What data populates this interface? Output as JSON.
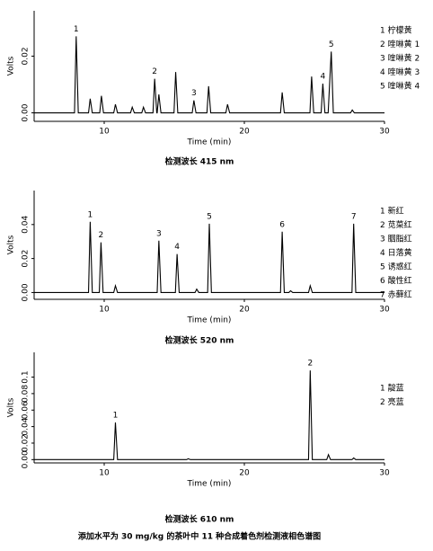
{
  "figure_caption": "添加水平为 30 mg/kg 的茶叶中 11 种合成着色剂检测液相色谱图",
  "chart_data": [
    {
      "type": "line",
      "caption": "检测波长 415 nm",
      "xlabel": "Time (min)",
      "ylabel": "Volts",
      "color": "#000000",
      "xlim": [
        5,
        30
      ],
      "xticks": [
        10,
        20,
        30
      ],
      "ylim": [
        -0.003,
        0.036
      ],
      "yticks": [
        {
          "value": 0,
          "label": "0.00"
        },
        {
          "value": 0.02,
          "label": "0.02"
        }
      ],
      "x": [
        5,
        7.88,
        8.0,
        8.15,
        8.88,
        9.0,
        9.15,
        9.68,
        9.8,
        9.95,
        10.68,
        10.8,
        10.95,
        11.88,
        12.0,
        12.15,
        12.68,
        12.8,
        12.95,
        13.48,
        13.6,
        13.75,
        13.78,
        13.9,
        14.05,
        14.98,
        15.1,
        15.25,
        16.28,
        16.4,
        16.55,
        17.33,
        17.45,
        17.6,
        18.68,
        18.8,
        18.95,
        22.58,
        22.7,
        22.85,
        24.68,
        24.8,
        24.95,
        25.48,
        25.6,
        25.75,
        25.98,
        26.2,
        26.35,
        27.58,
        27.7,
        27.85,
        30
      ],
      "values": [
        0,
        0,
        0.027,
        0,
        0,
        0.005,
        0,
        0,
        0.006,
        0,
        0,
        0.003,
        0,
        0,
        0.002,
        0,
        0,
        0.002,
        0,
        0,
        0.012,
        0,
        0,
        0.0065,
        0,
        0,
        0.0144,
        0,
        0,
        0.0044,
        0,
        0,
        0.0094,
        0,
        0,
        0.003,
        0,
        0,
        0.0072,
        0,
        0,
        0.0128,
        0,
        0,
        0.0103,
        0,
        0,
        0.0216,
        0,
        0,
        0.001,
        0,
        0
      ],
      "peak_labels": [
        {
          "text": "1",
          "x": 8.0,
          "y": 0.027
        },
        {
          "text": "2",
          "x": 13.6,
          "y": 0.012
        },
        {
          "text": "3",
          "x": 16.4,
          "y": 0.0044
        },
        {
          "text": "4",
          "x": 25.6,
          "y": 0.0103
        },
        {
          "text": "5",
          "x": 26.2,
          "y": 0.0216
        }
      ],
      "legend": [
        "1  柠檬黄",
        "2  喹啉黄 1",
        "3  喹啉黄 2",
        "4  喹啉黄 3",
        "5  喹啉黄 4"
      ]
    },
    {
      "type": "line",
      "caption": "检测波长 520 nm",
      "xlabel": "Time (min)",
      "ylabel": "Volts",
      "color": "#000000",
      "xlim": [
        5,
        30
      ],
      "xticks": [
        10,
        20,
        30
      ],
      "ylim": [
        -0.004,
        0.06
      ],
      "yticks": [
        {
          "value": 0,
          "label": "0.00"
        },
        {
          "value": 0.02,
          "label": "0.02"
        },
        {
          "value": 0.04,
          "label": "0.04"
        }
      ],
      "x": [
        5,
        8.88,
        9.0,
        9.15,
        9.65,
        9.77,
        9.92,
        10.68,
        10.8,
        10.95,
        13.78,
        13.9,
        14.05,
        15.08,
        15.2,
        15.35,
        16.48,
        16.6,
        16.75,
        17.38,
        17.5,
        17.65,
        22.58,
        22.7,
        22.85,
        23.18,
        23.3,
        23.45,
        24.58,
        24.7,
        24.85,
        27.68,
        27.8,
        27.95,
        30
      ],
      "values": [
        0,
        0,
        0.0416,
        0,
        0,
        0.0295,
        0,
        0,
        0.004,
        0,
        0,
        0.0305,
        0,
        0,
        0.0226,
        0,
        0,
        0.002,
        0,
        0,
        0.0405,
        0,
        0,
        0.0358,
        0,
        0,
        0.001,
        0,
        0,
        0.004,
        0,
        0,
        0.0405,
        0,
        0
      ],
      "peak_labels": [
        {
          "text": "1",
          "x": 9.0,
          "y": 0.0416
        },
        {
          "text": "2",
          "x": 9.77,
          "y": 0.0295
        },
        {
          "text": "3",
          "x": 13.9,
          "y": 0.0305
        },
        {
          "text": "4",
          "x": 15.2,
          "y": 0.0226
        },
        {
          "text": "5",
          "x": 17.5,
          "y": 0.0405
        },
        {
          "text": "6",
          "x": 22.7,
          "y": 0.0358
        },
        {
          "text": "7",
          "x": 27.8,
          "y": 0.0405
        }
      ],
      "legend": [
        "1  新红",
        "2  苋菜红",
        "3  胭脂红",
        "4  日落黄",
        "5  诱惑红",
        "6  酸性红",
        "7  赤藓红"
      ]
    },
    {
      "type": "line",
      "caption": "检测波长 610 nm",
      "xlabel": "Time (min)",
      "ylabel": "Volts",
      "color": "#000000",
      "xlim": [
        5,
        30
      ],
      "xticks": [
        10,
        20,
        30
      ],
      "ylim": [
        -0.004,
        0.13
      ],
      "yticks": [
        {
          "value": 0,
          "label": "0.00"
        },
        {
          "value": 0.02,
          "label": "0.02"
        },
        {
          "value": 0.04,
          "label": "0.04"
        },
        {
          "value": 0.06,
          "label": "0.06"
        },
        {
          "value": 0.08,
          "label": "0.08"
        },
        {
          "value": 0.1,
          "label": "0.1"
        }
      ],
      "x": [
        5,
        10.68,
        10.8,
        10.95,
        15.88,
        16.0,
        16.15,
        24.58,
        24.7,
        24.85,
        25.88,
        26.0,
        26.15,
        27.68,
        27.8,
        27.95,
        30
      ],
      "values": [
        0,
        0,
        0.045,
        0,
        0,
        0.001,
        0,
        0,
        0.108,
        0,
        0,
        0.006,
        0,
        0,
        0.002,
        0,
        0
      ],
      "peak_labels": [
        {
          "text": "1",
          "x": 10.8,
          "y": 0.045
        },
        {
          "text": "2",
          "x": 24.7,
          "y": 0.108
        }
      ],
      "legend": [
        "1  靛蓝",
        "2  亮蓝"
      ]
    }
  ]
}
